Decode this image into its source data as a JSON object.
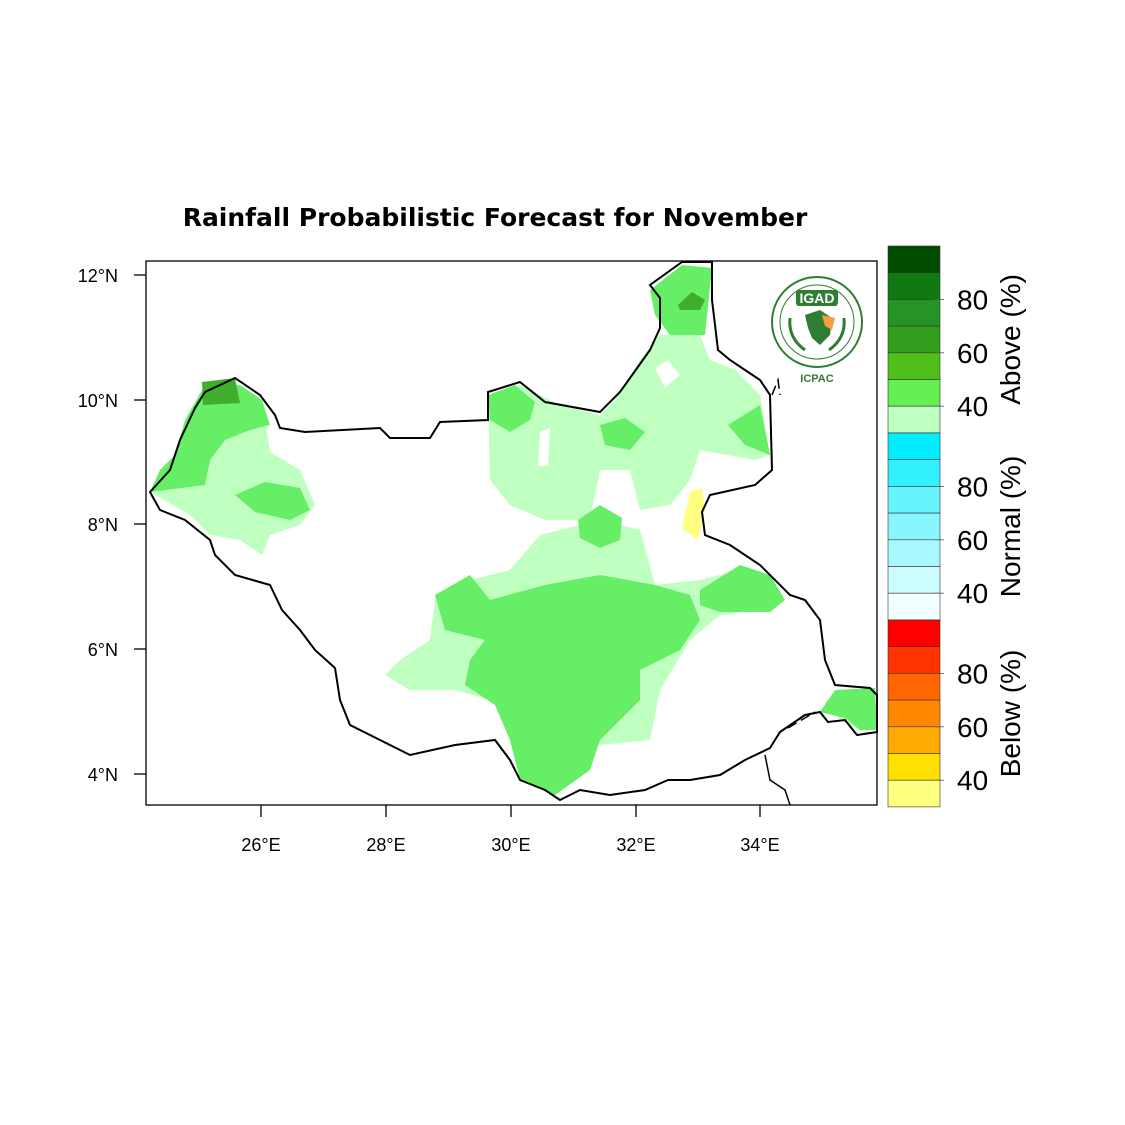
{
  "title": "Rainfall Probabilistic Forecast for November",
  "tiny_note": "",
  "map": {
    "lat_ticks": [
      "12°N",
      "10°N",
      "8°N",
      "6°N",
      "4°N"
    ],
    "lon_ticks": [
      "26°E",
      "28°E",
      "30°E",
      "32°E",
      "34°E"
    ],
    "colors": {
      "above_40": "#bfffbf",
      "above_50": "#66ff66",
      "above_60": "#4fbf2a",
      "yellow_40": "#ffff80",
      "border": "#000000"
    }
  },
  "logo": {
    "acronym": "IGAD",
    "subtitle": "ICPAC",
    "color": "#2e7d32"
  },
  "colorbar": {
    "groups": [
      {
        "label": "Above (%)",
        "ticks": [
          "80",
          "60",
          "40"
        ],
        "colors": [
          "#004d00",
          "#0f7a0f",
          "#259325",
          "#339e1e",
          "#4fbf1a",
          "#66ee55",
          "#bfffbf"
        ]
      },
      {
        "label": "Normal (%)",
        "ticks": [
          "80",
          "60",
          "40"
        ],
        "colors": [
          "#00eeff",
          "#33f0ff",
          "#66f4ff",
          "#88f5ff",
          "#aaf8ff",
          "#ccfcff",
          "#f2ffff"
        ]
      },
      {
        "label": "Below (%)",
        "ticks": [
          "80",
          "60",
          "40"
        ],
        "colors": [
          "#ff0000",
          "#ff3300",
          "#ff6600",
          "#ff8800",
          "#ffaa00",
          "#ffe000",
          "#ffff80"
        ]
      }
    ]
  }
}
